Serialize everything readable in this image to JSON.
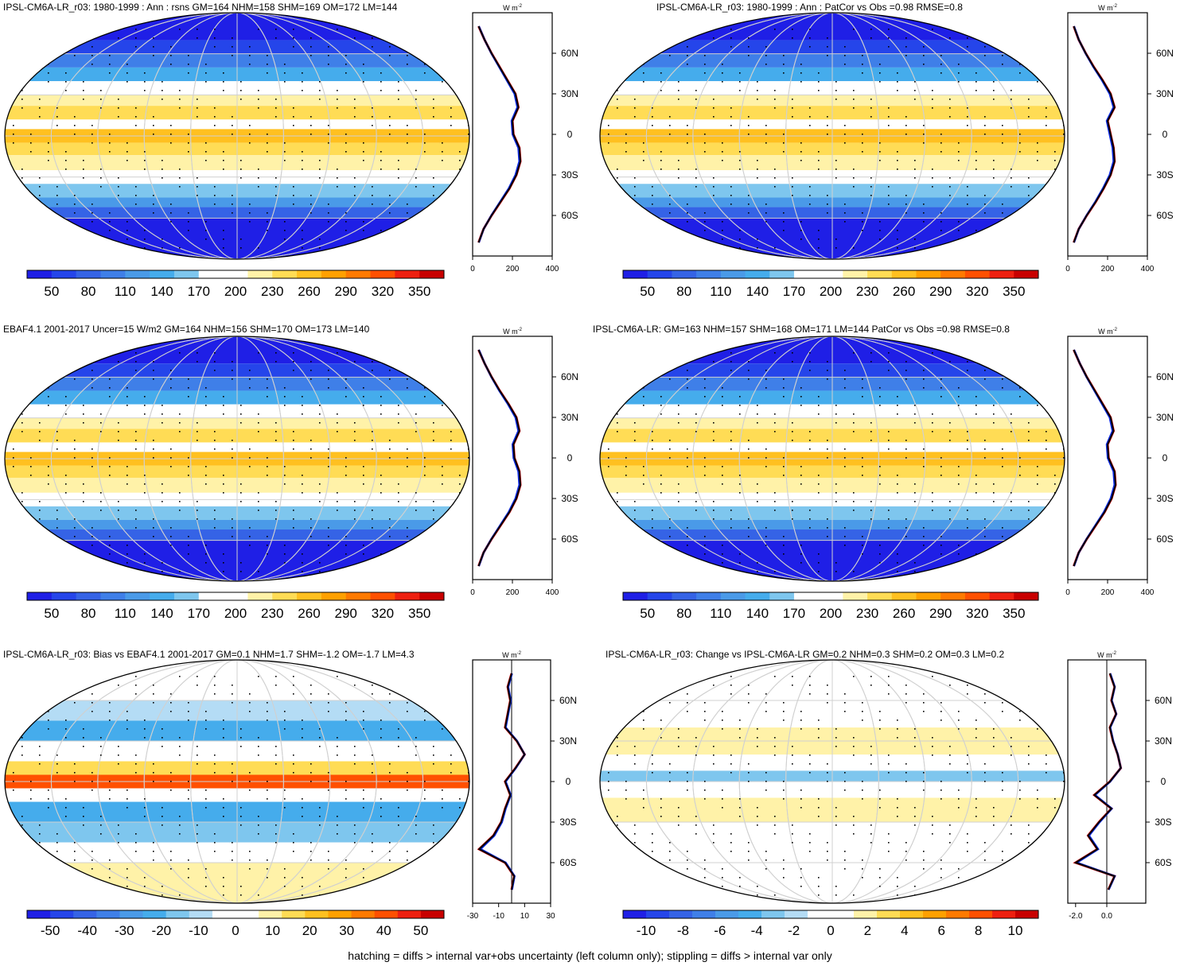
{
  "footer": "hatching = diffs > internal var+obs uncertainty (left column only); stippling = diffs > internal var only",
  "colors": {
    "fields": [
      "#1f1fe6",
      "#2545ea",
      "#3563e6",
      "#3f7fe8",
      "#4a9ae8",
      "#45acec",
      "#7ec6ee",
      "#ffffff",
      "#ffffff",
      "#fff2a8",
      "#ffdc55",
      "#ffc020",
      "#ffa000",
      "#ff7a00",
      "#ff5000",
      "#ee2010",
      "#c80000"
    ],
    "diffs": [
      "#1f1fe6",
      "#2545ea",
      "#3563e6",
      "#3f7fe8",
      "#4a9ae8",
      "#45acec",
      "#7ec6ee",
      "#b4dcf5",
      "#ffffff",
      "#ffffff",
      "#fff2a8",
      "#ffdc55",
      "#ffc020",
      "#ffa000",
      "#ff7a00",
      "#ff5000",
      "#ee2010",
      "#c80000"
    ],
    "line_model": "#e60000",
    "line_obs": "#0a28e6",
    "line_mean": "#000000"
  },
  "zonal_units": "W m",
  "zonal_units_sup": "-2",
  "lat_ticks": [
    "60N",
    "30N",
    "0",
    "30S",
    "60S"
  ],
  "panels": [
    {
      "title": "IPSL-CM6A-LR_r03: 1980-1999 : Ann : rsns GM=164 NHM=158 SHM=169 OM=172 LM=144",
      "colorbar_kind": "fields",
      "colorbar_labels": [
        "50",
        "80",
        "110",
        "140",
        "170",
        "200",
        "230",
        "260",
        "290",
        "320",
        "350"
      ],
      "zonal_ticks": [
        "0",
        "200",
        "400"
      ],
      "chart_data": {
        "type": "heatmap",
        "series": [
          {
            "name": "IPSL-CM6A-LR_r03"
          }
        ],
        "global_mean": 164,
        "nh_mean": 158,
        "sh_mean": 169,
        "ocean_mean": 172,
        "land_mean": 144,
        "colorbar_range": [
          50,
          350
        ],
        "zonal_mean": {
          "x_range": [
            0,
            400
          ],
          "lats": [
            80,
            70,
            60,
            50,
            40,
            30,
            20,
            10,
            0,
            -10,
            -20,
            -30,
            -40,
            -50,
            -60,
            -70,
            -80
          ],
          "values": [
            30,
            60,
            95,
            135,
            175,
            215,
            230,
            200,
            205,
            235,
            240,
            220,
            185,
            140,
            95,
            55,
            30
          ]
        }
      }
    },
    {
      "title": "IPSL-CM6A-LR_r03: 1980-1999 : Ann : PatCor vs Obs =0.98 RMSE=0.8",
      "colorbar_kind": "fields",
      "colorbar_labels": [
        "50",
        "80",
        "110",
        "140",
        "170",
        "200",
        "230",
        "260",
        "290",
        "320",
        "350"
      ],
      "zonal_ticks": [
        "0",
        "200",
        "400"
      ],
      "chart_data": {
        "type": "heatmap",
        "pattern_correlation": 0.98,
        "rmse": 0.8,
        "colorbar_range": [
          50,
          350
        ],
        "zonal_mean": {
          "x_range": [
            0,
            400
          ],
          "lats": [
            80,
            70,
            60,
            50,
            40,
            30,
            20,
            10,
            0,
            -10,
            -20,
            -30,
            -40,
            -50,
            -60,
            -70,
            -80
          ],
          "values": [
            30,
            55,
            90,
            130,
            175,
            215,
            235,
            200,
            215,
            230,
            235,
            215,
            180,
            140,
            95,
            55,
            30
          ]
        }
      }
    },
    {
      "title": "EBAF4.1 2001-2017 Uncer=15 W/m2 GM=164 NHM=156 SHM=170 OM=173 LM=140",
      "colorbar_kind": "fields",
      "colorbar_labels": [
        "50",
        "80",
        "110",
        "140",
        "170",
        "200",
        "230",
        "260",
        "290",
        "320",
        "350"
      ],
      "zonal_ticks": [
        "0",
        "200",
        "400"
      ],
      "chart_data": {
        "type": "heatmap",
        "series": [
          {
            "name": "EBAF4.1 2001-2017"
          }
        ],
        "uncertainty_wm2": 15,
        "global_mean": 164,
        "nh_mean": 156,
        "sh_mean": 170,
        "ocean_mean": 173,
        "land_mean": 140,
        "colorbar_range": [
          50,
          350
        ],
        "zonal_mean": {
          "x_range": [
            0,
            400
          ],
          "lats": [
            80,
            70,
            60,
            50,
            40,
            30,
            20,
            10,
            0,
            -10,
            -20,
            -30,
            -40,
            -50,
            -60,
            -70,
            -80
          ],
          "values": [
            30,
            60,
            95,
            135,
            180,
            220,
            235,
            205,
            210,
            235,
            240,
            220,
            185,
            140,
            95,
            55,
            30
          ]
        }
      }
    },
    {
      "title": "IPSL-CM6A-LR: GM=163 NHM=157 SHM=168 OM=171 LM=144 PatCor vs Obs =0.98 RMSE=0.8",
      "colorbar_kind": "fields",
      "colorbar_labels": [
        "50",
        "80",
        "110",
        "140",
        "170",
        "200",
        "230",
        "260",
        "290",
        "320",
        "350"
      ],
      "zonal_ticks": [
        "0",
        "200",
        "400"
      ],
      "chart_data": {
        "type": "heatmap",
        "series": [
          {
            "name": "IPSL-CM6A-LR"
          }
        ],
        "global_mean": 163,
        "nh_mean": 157,
        "sh_mean": 168,
        "ocean_mean": 171,
        "land_mean": 144,
        "pattern_correlation": 0.98,
        "rmse": 0.8,
        "colorbar_range": [
          50,
          350
        ],
        "zonal_mean": {
          "x_range": [
            0,
            400
          ],
          "lats": [
            80,
            70,
            60,
            50,
            40,
            30,
            20,
            10,
            0,
            -10,
            -20,
            -30,
            -40,
            -50,
            -60,
            -70,
            -80
          ],
          "values": [
            30,
            60,
            95,
            135,
            175,
            215,
            230,
            200,
            205,
            235,
            240,
            220,
            185,
            140,
            95,
            55,
            30
          ]
        }
      }
    },
    {
      "title": "IPSL-CM6A-LR_r03: Bias vs EBAF4.1 2001-2017 GM=0.1 NHM=1.7 SHM=-1.2 OM=-1.7 LM=4.3",
      "colorbar_kind": "diffs",
      "colorbar_labels": [
        "-50",
        "-40",
        "-30",
        "-20",
        "-10",
        "0",
        "10",
        "20",
        "30",
        "40",
        "50"
      ],
      "zonal_ticks": [
        "-30",
        "-10",
        "10",
        "30"
      ],
      "chart_data": {
        "type": "heatmap",
        "series": [
          {
            "name": "Bias vs EBAF4.1 2001-2017"
          }
        ],
        "global_mean": 0.1,
        "nh_mean": 1.7,
        "sh_mean": -1.2,
        "ocean_mean": -1.7,
        "land_mean": 4.3,
        "colorbar_range": [
          -50,
          50
        ],
        "zonal_mean": {
          "x_range": [
            -30,
            30
          ],
          "lats": [
            80,
            70,
            60,
            50,
            40,
            30,
            20,
            10,
            0,
            -10,
            -20,
            -30,
            -40,
            -50,
            -60,
            -70,
            -80
          ],
          "values": [
            0,
            -3,
            -1,
            -3,
            -5,
            4,
            10,
            3,
            -5,
            -1,
            -5,
            -8,
            -14,
            -25,
            -5,
            2,
            0
          ]
        }
      }
    },
    {
      "title": "IPSL-CM6A-LR_r03: Change vs IPSL-CM6A-LR GM=0.2 NHM=0.3 SHM=0.2 OM=0.3 LM=0.2",
      "colorbar_kind": "diffs",
      "colorbar_labels": [
        "-10",
        "-8",
        "-6",
        "-4",
        "-2",
        "0",
        "2",
        "4",
        "6",
        "8",
        "10"
      ],
      "zonal_ticks": [
        "-2.0",
        "0.0"
      ],
      "chart_data": {
        "type": "heatmap",
        "series": [
          {
            "name": "Change vs IPSL-CM6A-LR"
          }
        ],
        "global_mean": 0.2,
        "nh_mean": 0.3,
        "sh_mean": 0.2,
        "ocean_mean": 0.3,
        "land_mean": 0.2,
        "colorbar_range": [
          -10,
          10
        ],
        "zonal_mean": {
          "x_range": [
            -2.5,
            2.5
          ],
          "lats": [
            80,
            70,
            60,
            50,
            40,
            30,
            20,
            10,
            0,
            -10,
            -20,
            -30,
            -40,
            -50,
            -60,
            -70,
            -80
          ],
          "values": [
            0.2,
            0.5,
            0.3,
            0.6,
            0.2,
            0.4,
            0.7,
            0.9,
            0.2,
            -0.8,
            0.3,
            -0.5,
            -1.2,
            -0.6,
            -2.0,
            0.5,
            0.1
          ]
        }
      }
    }
  ]
}
